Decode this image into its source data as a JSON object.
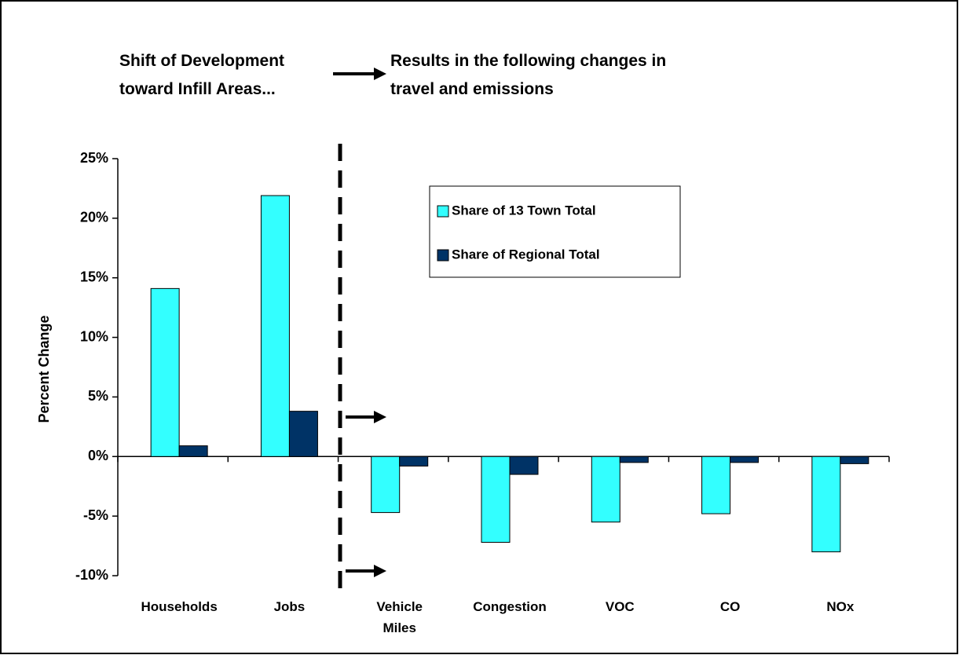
{
  "chart_data": {
    "type": "bar",
    "annotations": [
      {
        "lines": [
          "Shift of Development",
          "toward Infill Areas..."
        ]
      },
      {
        "lines": [
          "Results in the following changes in",
          "travel and emissions"
        ]
      }
    ],
    "y_label": "Percent Change",
    "categories": [
      "Households",
      "Jobs",
      "Vehicle Miles",
      "Congestion",
      "VOC",
      "CO",
      "NOx"
    ],
    "series": [
      {
        "name": "Share of 13 Town Total",
        "color": "#33ffff",
        "values": [
          14.1,
          21.9,
          -4.7,
          -7.2,
          -5.5,
          -4.8,
          -8.0
        ]
      },
      {
        "name": "Share of Regional Total",
        "color": "#003366",
        "values": [
          0.9,
          3.8,
          -0.8,
          -1.5,
          -0.5,
          -0.5,
          -0.6
        ]
      }
    ],
    "ylim": [
      -10,
      25
    ],
    "yticks": [
      {
        "value": -10,
        "label": "-10%"
      },
      {
        "value": -5,
        "label": "-5%"
      },
      {
        "value": 0,
        "label": "0%"
      },
      {
        "value": 5,
        "label": "5%"
      },
      {
        "value": 10,
        "label": "10%"
      },
      {
        "value": 15,
        "label": "15%"
      },
      {
        "value": 20,
        "label": "20%"
      },
      {
        "value": 25,
        "label": "25%"
      }
    ],
    "legend": "upper right"
  }
}
